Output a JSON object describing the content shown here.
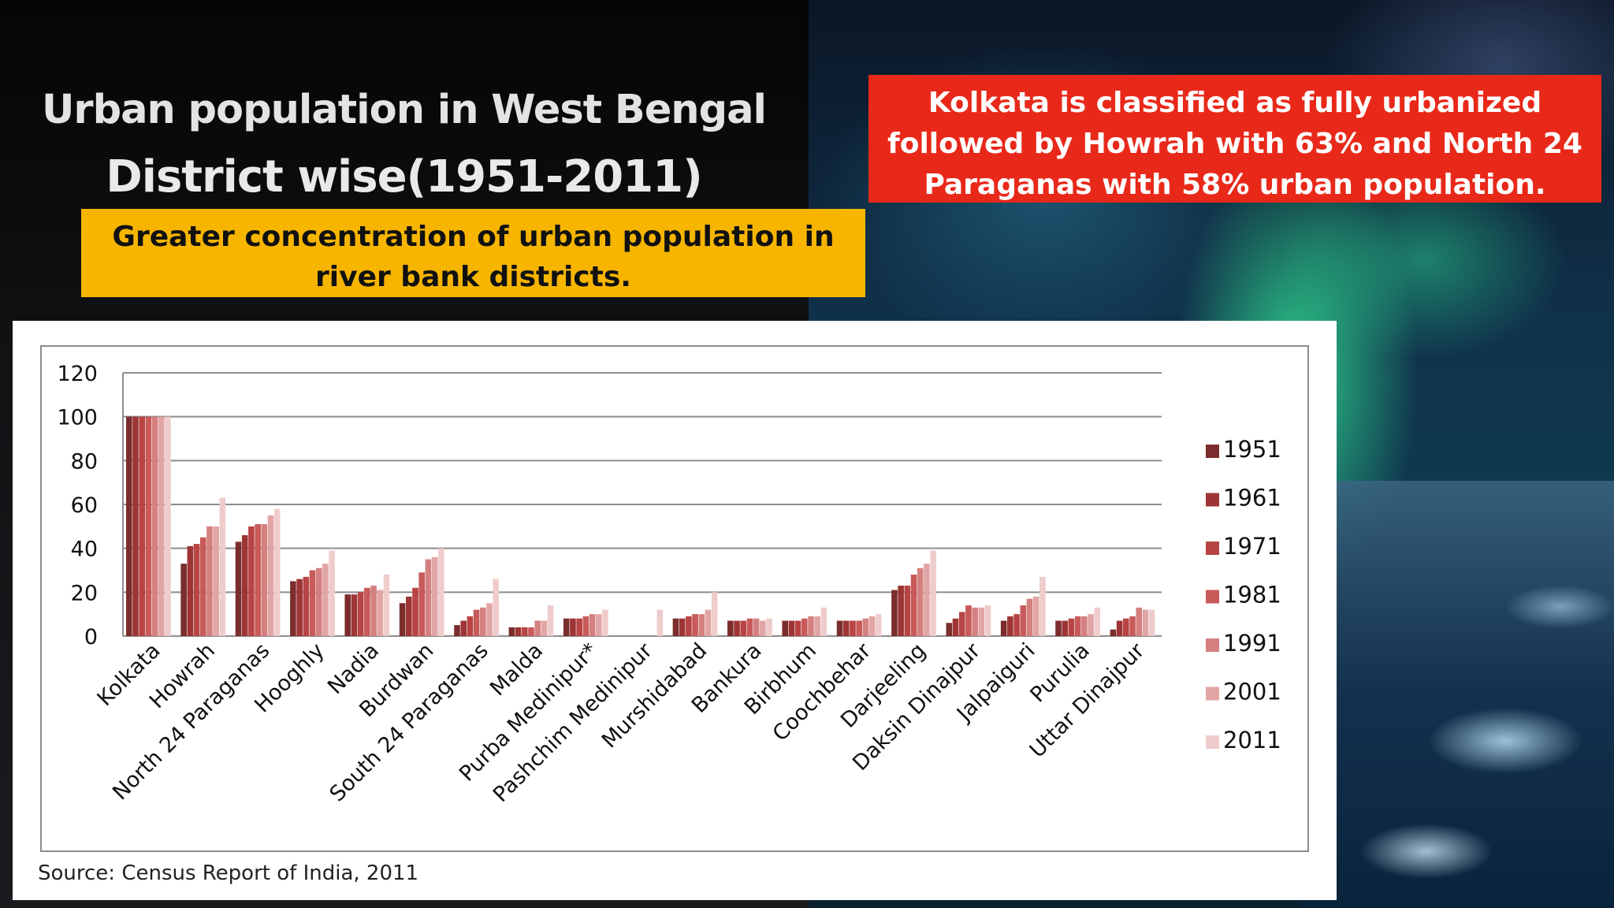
{
  "slide": {
    "title_line1": "Urban population in West Bengal",
    "title_line2": "District wise(1951-2011)",
    "highlight_note": "Greater concentration of urban population in river bank districts.",
    "callout": "Kolkata is classified as fully urbanized followed by Howrah with 63% and North 24 Paraganas with 58% urban population.",
    "source": "Source: Census Report of India, 2011"
  },
  "colors": {
    "highlight_bg": "#f7b500",
    "callout_bg": "#e8291a",
    "series": [
      "#7b2d2d",
      "#9e3535",
      "#b84444",
      "#c85a5a",
      "#d58080",
      "#e2a5a5",
      "#efcccc"
    ]
  },
  "chart_data": {
    "type": "bar",
    "ylim": [
      0,
      120
    ],
    "yticks": [
      0,
      20,
      40,
      60,
      80,
      100,
      120
    ],
    "grid": true,
    "legend_position": "right",
    "categories": [
      "Kolkata",
      "Howrah",
      "North 24 Paraganas",
      "Hooghly",
      "Nadia",
      "Burdwan",
      "South 24 Paraganas",
      "Malda",
      "Purba Medinipur*",
      "Pashchim Medinipur",
      "Murshidabad",
      "Bankura",
      "Birbhum",
      "Coochbehar",
      "Darjeeling",
      "Daksin Dinajpur",
      "Jalpaiguri",
      "Purulia",
      "Uttar Dinajpur"
    ],
    "series": [
      {
        "name": "1951",
        "values": [
          100,
          33,
          43,
          25,
          19,
          15,
          5,
          4,
          8,
          0,
          8,
          7,
          7,
          7,
          21,
          6,
          7,
          7,
          3
        ]
      },
      {
        "name": "1961",
        "values": [
          100,
          41,
          46,
          26,
          19,
          18,
          7,
          4,
          8,
          0,
          8,
          7,
          7,
          7,
          23,
          8,
          9,
          7,
          7
        ]
      },
      {
        "name": "1971",
        "values": [
          100,
          42,
          50,
          27,
          20,
          22,
          9,
          4,
          8,
          0,
          9,
          7,
          7,
          7,
          23,
          11,
          10,
          8,
          8
        ]
      },
      {
        "name": "1981",
        "values": [
          100,
          45,
          51,
          30,
          22,
          29,
          12,
          4,
          9,
          0,
          10,
          8,
          8,
          7,
          28,
          14,
          14,
          9,
          9
        ]
      },
      {
        "name": "1991",
        "values": [
          100,
          50,
          51,
          31,
          23,
          35,
          13,
          7,
          10,
          0,
          10,
          8,
          9,
          8,
          31,
          13,
          17,
          9,
          13
        ]
      },
      {
        "name": "2001",
        "values": [
          100,
          50,
          55,
          33,
          21,
          36,
          15,
          7,
          10,
          0,
          12,
          7,
          9,
          9,
          33,
          13,
          18,
          10,
          12
        ]
      },
      {
        "name": "2011",
        "values": [
          100,
          63,
          58,
          39,
          28,
          40,
          26,
          14,
          12,
          12,
          20,
          8,
          13,
          10,
          39,
          14,
          27,
          13,
          12
        ]
      }
    ]
  }
}
